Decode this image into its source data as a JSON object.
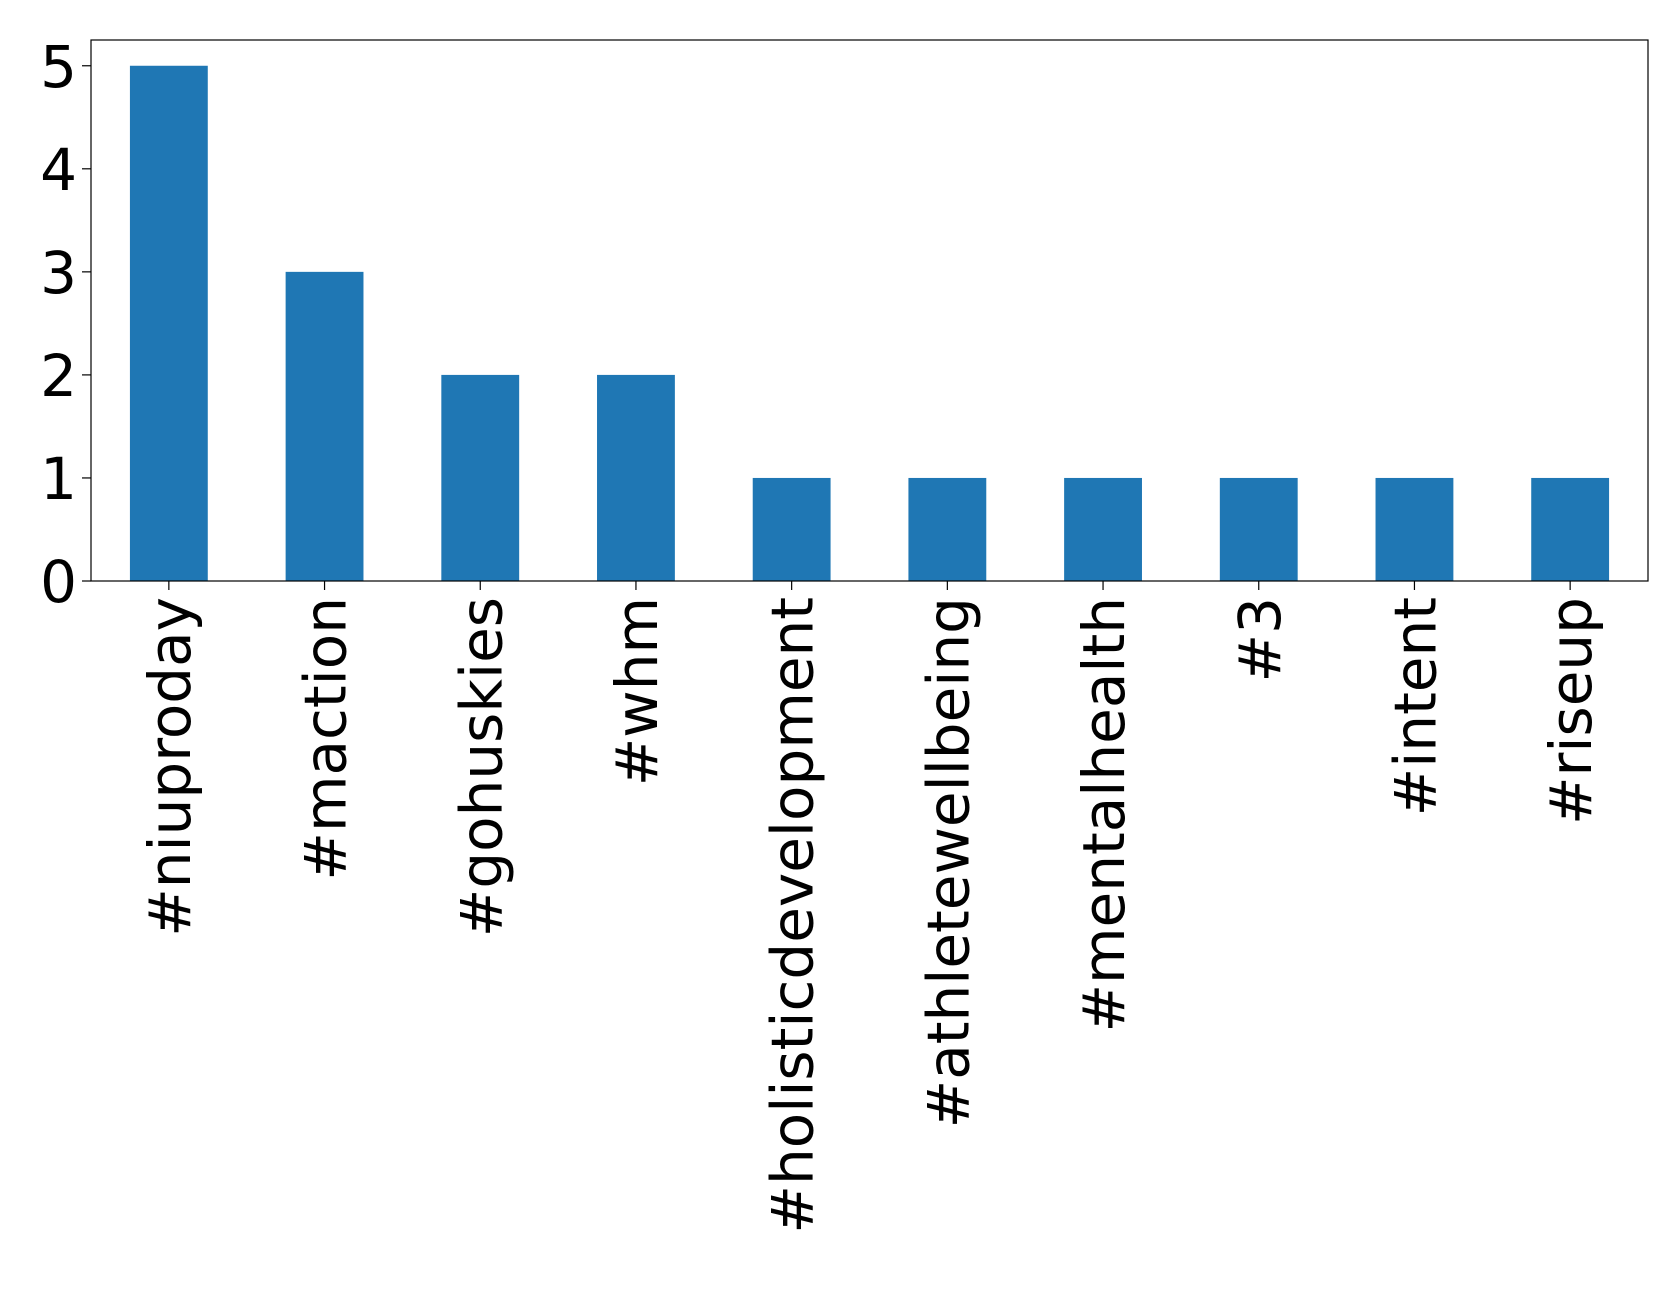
{
  "chart_data": {
    "type": "bar",
    "categories": [
      "#niuproday",
      "#maction",
      "#gohuskies",
      "#whm",
      "#holisticdevelopment",
      "#athletewellbeing",
      "#mentalhealth",
      "#3",
      "#intent",
      "#riseup"
    ],
    "values": [
      5,
      3,
      2,
      2,
      1,
      1,
      1,
      1,
      1,
      1
    ],
    "color": "#1f77b4",
    "ylim": [
      0,
      5.25
    ],
    "yticks": [
      0,
      1,
      2,
      3,
      4,
      5
    ],
    "grid": false
  }
}
